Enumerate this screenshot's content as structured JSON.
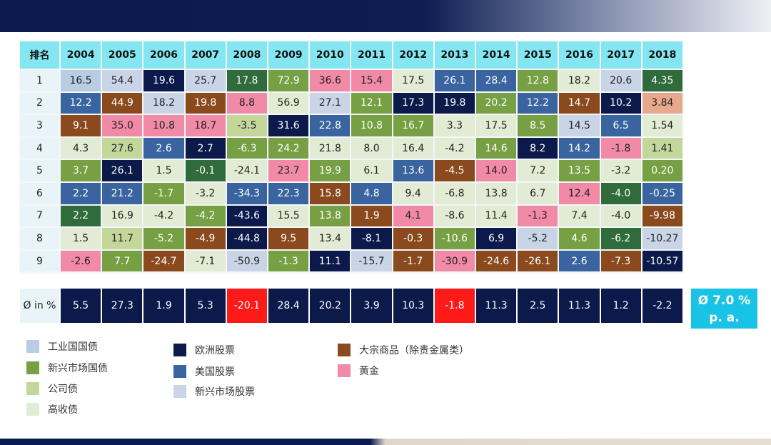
{
  "table": {
    "header": [
      "排名",
      "2004",
      "2005",
      "2006",
      "2007",
      "2008",
      "2009",
      "2010",
      "2011",
      "2012",
      "2013",
      "2014",
      "2015",
      "2016",
      "2017",
      "2018"
    ],
    "rows": [
      {
        "rank": "1",
        "cells": [
          {
            "text": "16.5",
            "color": "#b8cce4"
          },
          {
            "text": "54.4",
            "color": "#c9d5e6"
          },
          {
            "text": "19.6",
            "color": "#0b1a4a"
          },
          {
            "text": "25.7",
            "color": "#c9d5e6"
          },
          {
            "text": "17.8",
            "color": "#2f6b3b"
          },
          {
            "text": "72.9",
            "color": "#76a043"
          },
          {
            "text": "36.6",
            "color": "#f08aa6"
          },
          {
            "text": "15.4",
            "color": "#f08aa6"
          },
          {
            "text": "17.5",
            "color": "#e2ebd4"
          },
          {
            "text": "26.1",
            "color": "#3a64a0"
          },
          {
            "text": "28.4",
            "color": "#3a64a0"
          },
          {
            "text": "12.8",
            "color": "#76a043"
          },
          {
            "text": "18.2",
            "color": "#e2ebd4"
          },
          {
            "text": "20.6",
            "color": "#c9d5e6"
          },
          {
            "text": "4.35",
            "color": "#2f6b3b"
          }
        ]
      },
      {
        "rank": "2",
        "cells": [
          {
            "text": "12.2",
            "color": "#3a64a0"
          },
          {
            "text": "44.9",
            "color": "#8a4a1e"
          },
          {
            "text": "18.2",
            "color": "#c9d5e6"
          },
          {
            "text": "19.8",
            "color": "#8a4a1e"
          },
          {
            "text": "8.8",
            "color": "#f08aa6"
          },
          {
            "text": "56.9",
            "color": "#e2ebd4"
          },
          {
            "text": "27.1",
            "color": "#c9d5e6"
          },
          {
            "text": "12.1",
            "color": "#76a043"
          },
          {
            "text": "17.3",
            "color": "#0b1a4a"
          },
          {
            "text": "19.8",
            "color": "#0b1a4a"
          },
          {
            "text": "20.2",
            "color": "#76a043"
          },
          {
            "text": "12.2",
            "color": "#3a64a0"
          },
          {
            "text": "14.7",
            "color": "#8a4a1e"
          },
          {
            "text": "10.2",
            "color": "#0b1a4a"
          },
          {
            "text": "3.84",
            "color": "#e8a88e"
          }
        ]
      },
      {
        "rank": "3",
        "cells": [
          {
            "text": "9.1",
            "color": "#8a4a1e"
          },
          {
            "text": "35.0",
            "color": "#f08aa6"
          },
          {
            "text": "10.8",
            "color": "#f08aa6"
          },
          {
            "text": "18.7",
            "color": "#f08aa6"
          },
          {
            "text": "-3.5",
            "color": "#c4d79b"
          },
          {
            "text": "31.6",
            "color": "#0b1a4a"
          },
          {
            "text": "22.8",
            "color": "#3a64a0"
          },
          {
            "text": "10.8",
            "color": "#76a043"
          },
          {
            "text": "16.7",
            "color": "#76a043"
          },
          {
            "text": "3.3",
            "color": "#e2ebd4"
          },
          {
            "text": "17.5",
            "color": "#e2ebd4"
          },
          {
            "text": "8.5",
            "color": "#76a043"
          },
          {
            "text": "14.5",
            "color": "#c9d5e6"
          },
          {
            "text": "6.5",
            "color": "#3a64a0"
          },
          {
            "text": "1.54",
            "color": "#e2ebd4"
          }
        ]
      },
      {
        "rank": "4",
        "cells": [
          {
            "text": "4.3",
            "color": "#e2ebd4"
          },
          {
            "text": "27.6",
            "color": "#c4d79b"
          },
          {
            "text": "2.6",
            "color": "#3a64a0"
          },
          {
            "text": "2.7",
            "color": "#0b1a4a"
          },
          {
            "text": "-6.3",
            "color": "#76a043"
          },
          {
            "text": "24.2",
            "color": "#76a043"
          },
          {
            "text": "21.8",
            "color": "#e2ebd4"
          },
          {
            "text": "8.0",
            "color": "#e2ebd4"
          },
          {
            "text": "16.4",
            "color": "#e2ebd4"
          },
          {
            "text": "-4.2",
            "color": "#e2ebd4"
          },
          {
            "text": "14.6",
            "color": "#76a043"
          },
          {
            "text": "8.2",
            "color": "#0b1a4a"
          },
          {
            "text": "14.2",
            "color": "#3a64a0"
          },
          {
            "text": "-1.8",
            "color": "#f08aa6"
          },
          {
            "text": "1.41",
            "color": "#c4d79b"
          }
        ]
      },
      {
        "rank": "5",
        "cells": [
          {
            "text": "3.7",
            "color": "#76a043"
          },
          {
            "text": "26.1",
            "color": "#0b1a4a"
          },
          {
            "text": "1.5",
            "color": "#e2ebd4"
          },
          {
            "text": "-0.1",
            "color": "#2f6b3b"
          },
          {
            "text": "-24.1",
            "color": "#e2ebd4"
          },
          {
            "text": "23.7",
            "color": "#f08aa6"
          },
          {
            "text": "19.9",
            "color": "#76a043"
          },
          {
            "text": "6.1",
            "color": "#e2ebd4"
          },
          {
            "text": "13.6",
            "color": "#3a64a0"
          },
          {
            "text": "-4.5",
            "color": "#8a4a1e"
          },
          {
            "text": "14.0",
            "color": "#f08aa6"
          },
          {
            "text": "7.2",
            "color": "#e2ebd4"
          },
          {
            "text": "13.5",
            "color": "#76a043"
          },
          {
            "text": "-3.2",
            "color": "#e2ebd4"
          },
          {
            "text": "0.20",
            "color": "#76a043"
          }
        ]
      },
      {
        "rank": "6",
        "cells": [
          {
            "text": "2.2",
            "color": "#3a64a0"
          },
          {
            "text": "21.2",
            "color": "#3a64a0"
          },
          {
            "text": "-1.7",
            "color": "#76a043"
          },
          {
            "text": "-3.2",
            "color": "#e2ebd4"
          },
          {
            "text": "-34.3",
            "color": "#3a64a0"
          },
          {
            "text": "22.3",
            "color": "#3a64a0"
          },
          {
            "text": "15.8",
            "color": "#8a4a1e"
          },
          {
            "text": "4.8",
            "color": "#3a64a0"
          },
          {
            "text": "9.4",
            "color": "#e2ebd4"
          },
          {
            "text": "-6.8",
            "color": "#e2ebd4"
          },
          {
            "text": "13.8",
            "color": "#e2ebd4"
          },
          {
            "text": "6.7",
            "color": "#e2ebd4"
          },
          {
            "text": "12.4",
            "color": "#f08aa6"
          },
          {
            "text": "-4.0",
            "color": "#2f6b3b"
          },
          {
            "text": "-0.25",
            "color": "#3a64a0"
          }
        ]
      },
      {
        "rank": "7",
        "cells": [
          {
            "text": "2.2",
            "color": "#2f6b3b"
          },
          {
            "text": "16.9",
            "color": "#e2ebd4"
          },
          {
            "text": "-4.2",
            "color": "#e2ebd4"
          },
          {
            "text": "-4.2",
            "color": "#76a043"
          },
          {
            "text": "-43.6",
            "color": "#0b1a4a"
          },
          {
            "text": "15.5",
            "color": "#e2ebd4"
          },
          {
            "text": "13.8",
            "color": "#76a043"
          },
          {
            "text": "1.9",
            "color": "#8a4a1e"
          },
          {
            "text": "4.1",
            "color": "#f08aa6"
          },
          {
            "text": "-8.6",
            "color": "#e2ebd4"
          },
          {
            "text": "11.4",
            "color": "#e2ebd4"
          },
          {
            "text": "-1.3",
            "color": "#f08aa6"
          },
          {
            "text": "7.4",
            "color": "#e2ebd4"
          },
          {
            "text": "-4.0",
            "color": "#e2ebd4"
          },
          {
            "text": "-9.98",
            "color": "#8a4a1e"
          }
        ]
      },
      {
        "rank": "8",
        "cells": [
          {
            "text": "1.5",
            "color": "#e2ebd4"
          },
          {
            "text": "11.7",
            "color": "#c4d79b"
          },
          {
            "text": "-5.2",
            "color": "#76a043"
          },
          {
            "text": "-4.9",
            "color": "#8a4a1e"
          },
          {
            "text": "-44.8",
            "color": "#0b1a4a"
          },
          {
            "text": "9.5",
            "color": "#8a4a1e"
          },
          {
            "text": "13.4",
            "color": "#e2ebd4"
          },
          {
            "text": "-8.1",
            "color": "#0b1a4a"
          },
          {
            "text": "-0.3",
            "color": "#8a4a1e"
          },
          {
            "text": "-10.6",
            "color": "#76a043"
          },
          {
            "text": "6.9",
            "color": "#0b1a4a"
          },
          {
            "text": "-5.2",
            "color": "#c9d5e6"
          },
          {
            "text": "4.6",
            "color": "#76a043"
          },
          {
            "text": "-6.2",
            "color": "#2f6b3b"
          },
          {
            "text": "-10.27",
            "color": "#c9d5e6"
          }
        ]
      },
      {
        "rank": "9",
        "cells": [
          {
            "text": "-2.6",
            "color": "#f08aa6"
          },
          {
            "text": "7.7",
            "color": "#76a043"
          },
          {
            "text": "-24.7",
            "color": "#8a4a1e"
          },
          {
            "text": "-7.1",
            "color": "#e2ebd4"
          },
          {
            "text": "-50.9",
            "color": "#c9d5e6"
          },
          {
            "text": "-1.3",
            "color": "#76a043"
          },
          {
            "text": "11.1",
            "color": "#0b1a4a"
          },
          {
            "text": "-15.7",
            "color": "#c9d5e6"
          },
          {
            "text": "-1.7",
            "color": "#8a4a1e"
          },
          {
            "text": "-30.9",
            "color": "#f08aa6"
          },
          {
            "text": "-24.6",
            "color": "#8a4a1e"
          },
          {
            "text": "-26.1",
            "color": "#8a4a1e"
          },
          {
            "text": "2.6",
            "color": "#3a64a0"
          },
          {
            "text": "-7.3",
            "color": "#8a4a1e"
          },
          {
            "text": "-10.57",
            "color": "#0b1a4a"
          }
        ]
      }
    ],
    "average": {
      "label": "Ø in %",
      "cells": [
        {
          "text": "5.5",
          "color": "#0b1a4a"
        },
        {
          "text": "27.3",
          "color": "#0b1a4a"
        },
        {
          "text": "1.9",
          "color": "#0b1a4a"
        },
        {
          "text": "5.3",
          "color": "#0b1a4a"
        },
        {
          "text": "-20.1",
          "color": "#ff1a1a"
        },
        {
          "text": "28.4",
          "color": "#0b1a4a"
        },
        {
          "text": "20.2",
          "color": "#0b1a4a"
        },
        {
          "text": "3.9",
          "color": "#0b1a4a"
        },
        {
          "text": "10.3",
          "color": "#0b1a4a"
        },
        {
          "text": "-1.8",
          "color": "#ff1a1a"
        },
        {
          "text": "11.3",
          "color": "#0b1a4a"
        },
        {
          "text": "2.5",
          "color": "#0b1a4a"
        },
        {
          "text": "11.3",
          "color": "#0b1a4a"
        },
        {
          "text": "1.2",
          "color": "#0b1a4a"
        },
        {
          "text": "-2.2",
          "color": "#0b1a4a"
        }
      ]
    }
  },
  "summary": {
    "line1": "Ø 7.0 %",
    "line2": "p. a."
  },
  "legend": [
    {
      "label": "工业国国债",
      "color": "#b8cce4"
    },
    {
      "label": "新兴市场国债",
      "color": "#76a043"
    },
    {
      "label": "公司债",
      "color": "#c4d79b"
    },
    {
      "label": "高收债",
      "color": "#e2ebd4"
    },
    {
      "label": "欧洲股票",
      "color": "#0b1a4a"
    },
    {
      "label": "美国股票",
      "color": "#3a64a0"
    },
    {
      "label": "新兴市场股票",
      "color": "#c9d5e6"
    },
    {
      "label": "大宗商品（除贵金属类）",
      "color": "#8a4a1e"
    },
    {
      "label": "黄金",
      "color": "#f08aa6"
    }
  ]
}
